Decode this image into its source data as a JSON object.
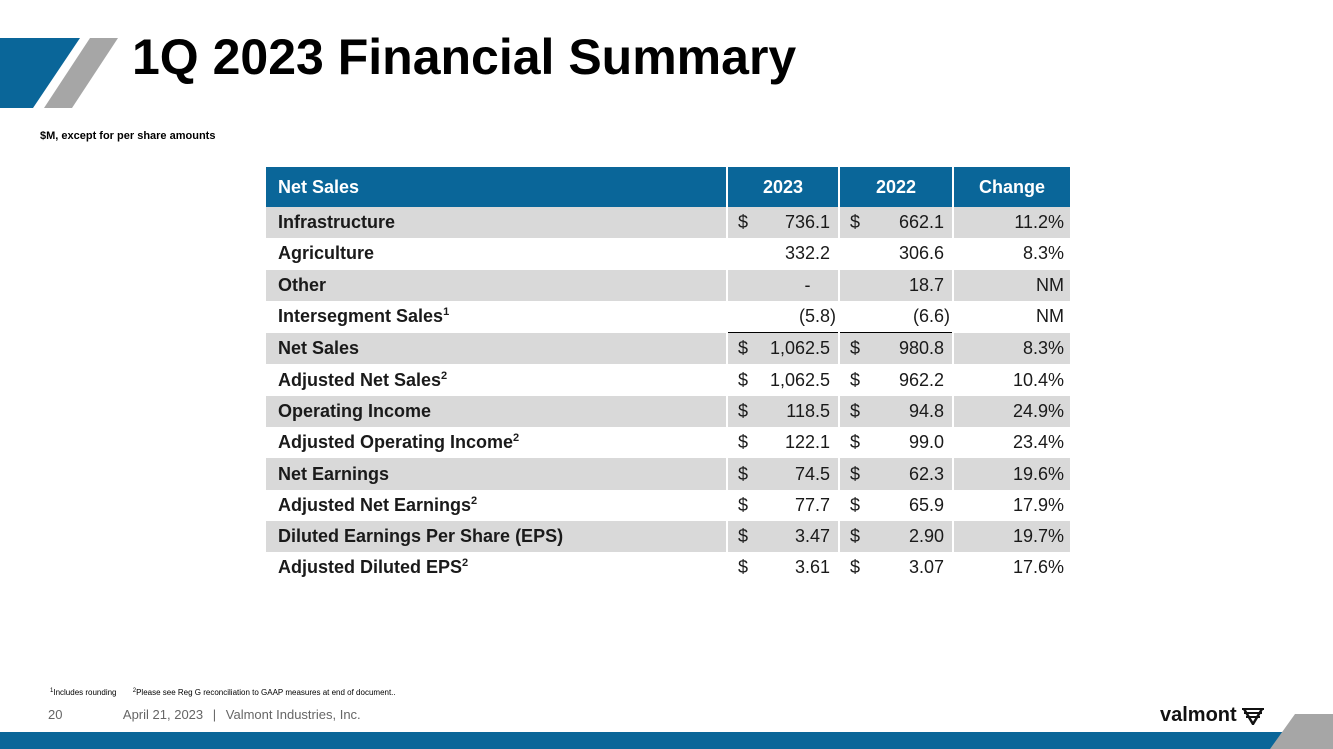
{
  "slide": {
    "title": "1Q 2023 Financial Summary",
    "subtitle": "$M, except for per share amounts"
  },
  "table": {
    "headers": {
      "label": "Net Sales",
      "y2023": "2023",
      "y2022": "2022",
      "change": "Change"
    },
    "rows": [
      {
        "label": "Infrastructure",
        "sup": "",
        "cur1": "$",
        "v2023": "736.1",
        "cur2": "$",
        "v2022": "662.1",
        "change": "11.2%"
      },
      {
        "label": "Agriculture",
        "sup": "",
        "cur1": "",
        "v2023": "332.2",
        "cur2": "",
        "v2022": "306.6",
        "change": "8.3%"
      },
      {
        "label": "Other",
        "sup": "",
        "cur1": "",
        "v2023": "-",
        "cur2": "",
        "v2022": "18.7",
        "change": "NM"
      },
      {
        "label": "Intersegment Sales",
        "sup": "1",
        "cur1": "",
        "v2023": "(5.8)",
        "cur2": "",
        "v2022": "(6.6)",
        "change": "NM"
      },
      {
        "label": "Net Sales",
        "sup": "",
        "cur1": "$",
        "v2023": "1,062.5",
        "cur2": "$",
        "v2022": "980.8",
        "change": "8.3%"
      },
      {
        "label": "Adjusted Net Sales",
        "sup": "2",
        "cur1": "$",
        "v2023": "1,062.5",
        "cur2": "$",
        "v2022": "962.2",
        "change": "10.4%"
      },
      {
        "label": "Operating Income",
        "sup": "",
        "cur1": "$",
        "v2023": "118.5",
        "cur2": "$",
        "v2022": "94.8",
        "change": "24.9%"
      },
      {
        "label": "Adjusted Operating Income",
        "sup": "2",
        "cur1": "$",
        "v2023": "122.1",
        "cur2": "$",
        "v2022": "99.0",
        "change": "23.4%"
      },
      {
        "label": "Net Earnings",
        "sup": "",
        "cur1": "$",
        "v2023": "74.5",
        "cur2": "$",
        "v2022": "62.3",
        "change": "19.6%"
      },
      {
        "label": "Adjusted Net Earnings",
        "sup": "2",
        "cur1": "$",
        "v2023": "77.7",
        "cur2": "$",
        "v2022": "65.9",
        "change": "17.9%"
      },
      {
        "label": "Diluted Earnings Per Share (EPS)",
        "sup": "",
        "cur1": "$",
        "v2023": "3.47",
        "cur2": "$",
        "v2022": "2.90",
        "change": "19.7%"
      },
      {
        "label": "Adjusted Diluted EPS",
        "sup": "2",
        "cur1": "$",
        "v2023": "3.61",
        "cur2": "$",
        "v2022": "3.07",
        "change": "17.6%"
      }
    ]
  },
  "footnotes": {
    "n1_mark": "1",
    "n1_text": "Includes rounding",
    "n2_mark": "2",
    "n2_text": "Please see Reg G reconciliation to GAAP measures at end of document.."
  },
  "footer": {
    "page": "20",
    "date": "April 21, 2023",
    "separator": "|",
    "company": "Valmont Industries, Inc."
  },
  "logo": {
    "text": "valmont",
    "icon": "valmont-v-icon"
  },
  "colors": {
    "brand_blue": "#0a6699",
    "accent_gray": "#a6a6a6",
    "row_shade": "#d9d9d9"
  }
}
